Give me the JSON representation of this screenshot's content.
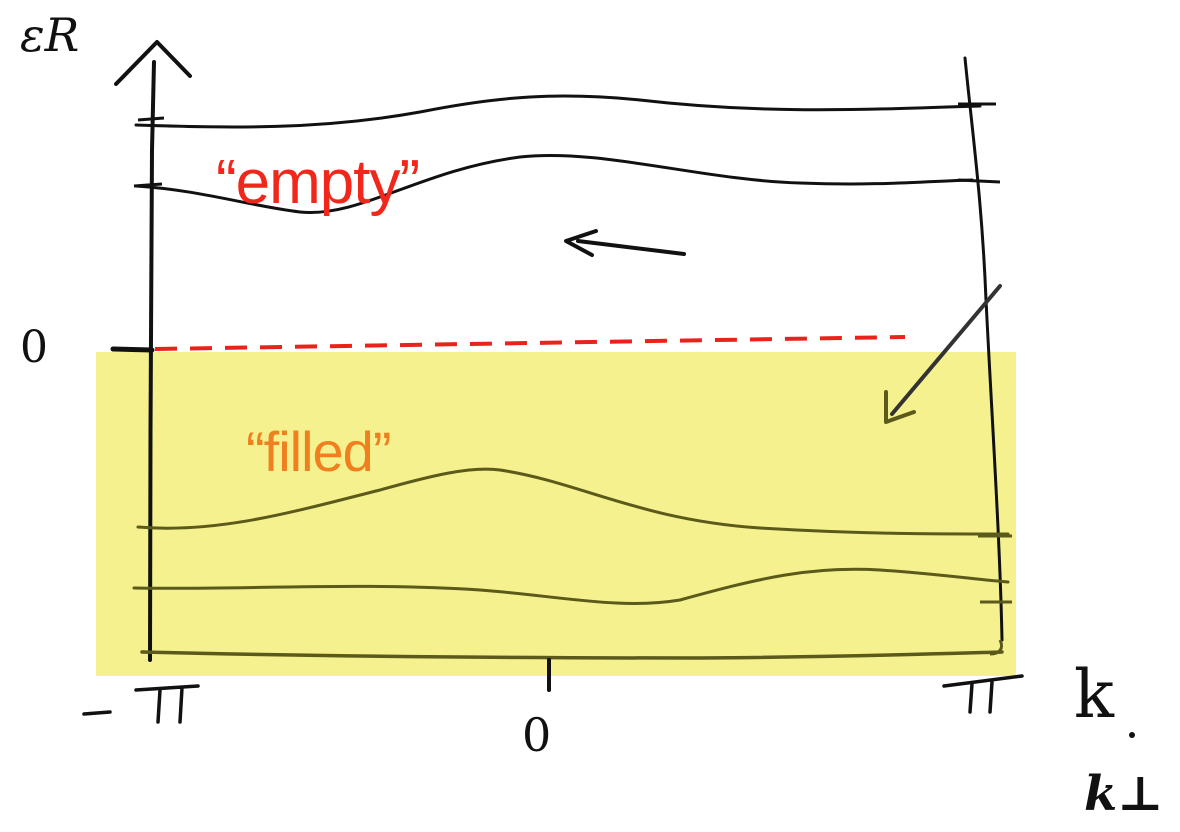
{
  "diagram": {
    "y_axis_label": "εR",
    "x_axis_label": "k",
    "perp_label": "k⊥",
    "y_zero_label": "0",
    "x_min_label": "−π",
    "x_mid_label": "0",
    "x_max_label": "π",
    "empty_label": "“empty”",
    "filled_label": "“filled”"
  },
  "colors": {
    "ink": "#111111",
    "empty_text": "#f0271a",
    "filled_text": "#ef7f1f",
    "fermi_line": "#e8231b",
    "filled_region": "#f3ef7a",
    "filled_ink": "#5b5a1a"
  }
}
